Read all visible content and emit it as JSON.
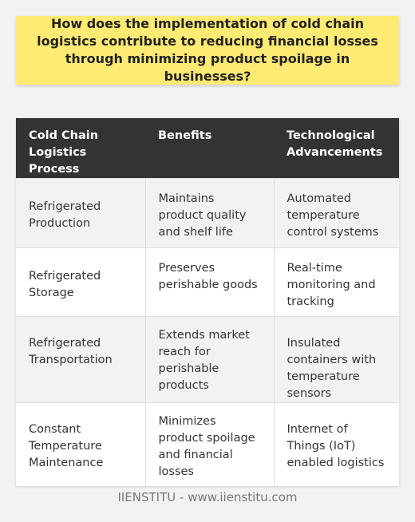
{
  "question": "How does the implementation of cold chain logistics contribute to reducing financial losses through minimizing product spoilage in businesses?",
  "table": {
    "headers": [
      "Cold Chain Logistics Process",
      "Benefits",
      "Technological Advancements"
    ],
    "rows": [
      [
        "Refrigerated Production",
        "Maintains product quality and shelf life",
        "Automated temperature control systems"
      ],
      [
        "Refrigerated Storage",
        "Preserves perishable goods",
        "Real-time monitoring and tracking"
      ],
      [
        "Refrigerated Transportation",
        "Extends market reach for perishable products",
        "Insulated containers with temperature sensors"
      ],
      [
        "Constant Temperature Maintenance",
        "Minimizes product spoilage and financial losses",
        "Internet of Things (IoT) enabled logistics"
      ]
    ]
  },
  "footer": "IIENSTITU - www.iienstitu.com",
  "colors": {
    "question_bg": "#ffeb73",
    "header_bg": "#333333",
    "page_bg": "#f2f2f2"
  }
}
